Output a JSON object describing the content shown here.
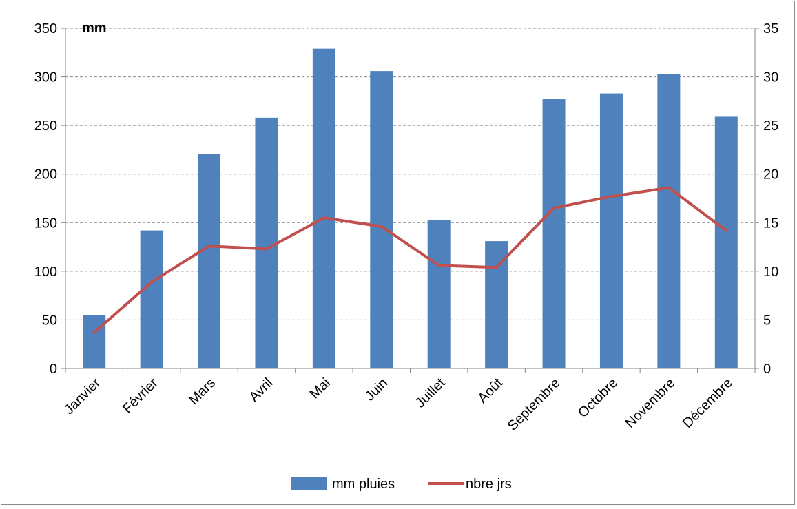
{
  "chart_data": {
    "type": "bar",
    "unit_label": "mm",
    "categories": [
      "Janvier",
      "Février",
      "Mars",
      "Avril",
      "Mai",
      "Juin",
      "Juillet",
      "Août",
      "Septembre",
      "Octobre",
      "Novembre",
      "Décembre"
    ],
    "series": [
      {
        "name": "mm pluies",
        "type": "bar",
        "axis": "left",
        "color": "#4f81bd",
        "values": [
          55,
          142,
          221,
          258,
          329,
          306,
          153,
          131,
          277,
          283,
          303,
          259
        ]
      },
      {
        "name": "nbre jrs",
        "type": "line",
        "axis": "right",
        "color": "#c0504d",
        "values": [
          3.7,
          8.9,
          12.6,
          12.3,
          15.5,
          14.6,
          10.6,
          10.4,
          16.5,
          17.7,
          18.6,
          14.2
        ]
      }
    ],
    "ylim_left": [
      0,
      350
    ],
    "yticks_left": [
      0,
      50,
      100,
      150,
      200,
      250,
      300,
      350
    ],
    "ylim_right": [
      0,
      35
    ],
    "yticks_right": [
      0,
      5,
      10,
      15,
      20,
      25,
      30,
      35
    ],
    "grid": true,
    "legend_position": "bottom"
  }
}
